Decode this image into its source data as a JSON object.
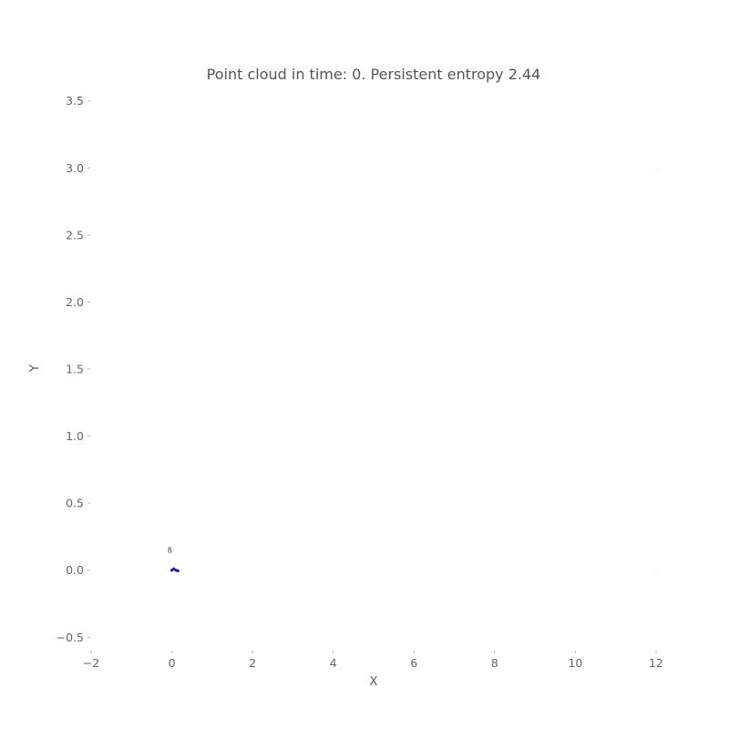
{
  "chart_data": {
    "type": "scatter",
    "title": "Point cloud in time: 0. Persistent entropy 2.44",
    "xlabel": "X",
    "ylabel": "Y",
    "xlim": [
      -2,
      12
    ],
    "ylim": [
      -0.6,
      3.6
    ],
    "xticks": [
      -2,
      0,
      2,
      4,
      6,
      8,
      10,
      12
    ],
    "xtick_labels": [
      "−2",
      "0",
      "2",
      "4",
      "6",
      "8",
      "10",
      "12"
    ],
    "yticks": [
      -0.5,
      0.0,
      0.5,
      1.0,
      1.5,
      2.0,
      2.5,
      3.0,
      3.5
    ],
    "ytick_labels": [
      "−0.5",
      "0.0",
      "0.5",
      "1.0",
      "1.5",
      "2.0",
      "2.5",
      "3.0",
      "3.5"
    ],
    "grid": false,
    "series": [
      {
        "color": "#1a1aa6",
        "points": [
          {
            "x": 0.0,
            "y": 0.0
          },
          {
            "x": 0.05,
            "y": 0.01
          },
          {
            "x": 0.1,
            "y": 0.0
          },
          {
            "x": 0.15,
            "y": -0.005
          }
        ]
      }
    ],
    "annotations": [
      {
        "text": "ß",
        "x": -0.05,
        "y": 0.15
      }
    ]
  }
}
